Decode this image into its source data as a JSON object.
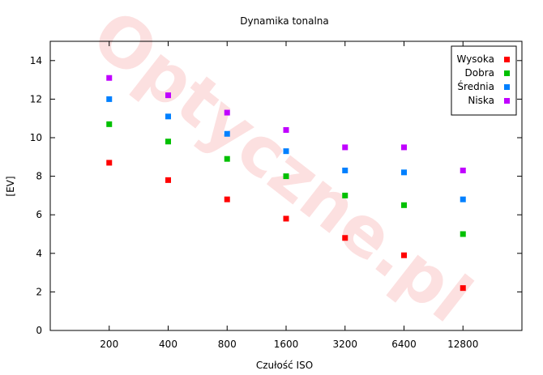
{
  "watermark": "Optyczne.pl",
  "chart_data": {
    "type": "scatter",
    "title": "Dynamika tonalna",
    "xlabel": "Czułość ISO",
    "ylabel": "[EV]",
    "categories": [
      "200",
      "400",
      "800",
      "1600",
      "3200",
      "6400",
      "12800"
    ],
    "ylim": [
      0,
      15
    ],
    "yticks": [
      0,
      2,
      4,
      6,
      8,
      10,
      12,
      14
    ],
    "grid": false,
    "legend_position": "top-right",
    "series": [
      {
        "name": "Wysoka",
        "color": "#ff0000",
        "values": [
          8.7,
          7.8,
          6.8,
          5.8,
          4.8,
          3.9,
          2.2
        ]
      },
      {
        "name": "Dobra",
        "color": "#00c000",
        "values": [
          10.7,
          9.8,
          8.9,
          8.0,
          7.0,
          6.5,
          5.0
        ]
      },
      {
        "name": "Średnia",
        "color": "#0080ff",
        "values": [
          12.0,
          11.1,
          10.2,
          9.3,
          8.3,
          8.2,
          6.8
        ]
      },
      {
        "name": "Niska",
        "color": "#c000ff",
        "values": [
          13.1,
          12.2,
          11.3,
          10.4,
          9.5,
          9.5,
          8.3
        ]
      }
    ]
  }
}
